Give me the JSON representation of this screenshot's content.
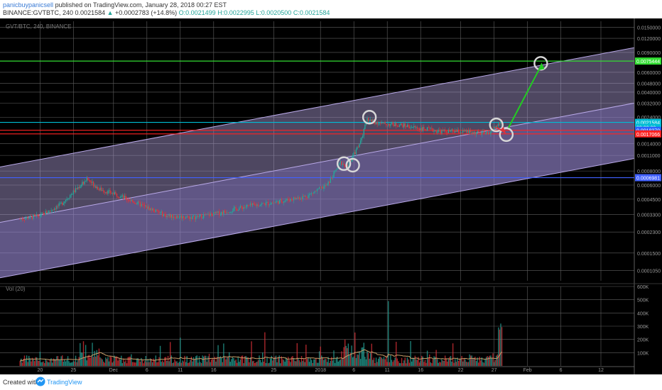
{
  "header": {
    "author": "panicbuypanicsell",
    "published": "published on TradingView.com, January 28, 2018 00:27 EST",
    "symbol": "BINANCE:GVTBTC, 240",
    "last": "0.0021584",
    "change_arrow": "▲",
    "change": "+0.0002783 (+14.8%)",
    "o": "O:0.0021499",
    "h": "H:0.0022995",
    "l": "L:0.0020500",
    "c": "C:0.0021584"
  },
  "footer": {
    "created_with": "Created with",
    "brand": "TradingView",
    "logo_icon": "tradingview-logo-icon"
  },
  "colors": {
    "background": "#000000",
    "grid": "#5f5f5f",
    "channel": "#b9a9e8",
    "channel_band": "#9b8ad6",
    "up": "#26a69a",
    "down": "#e0333a",
    "volume_ma": "#c89f6a",
    "support_red": "#ff2222",
    "resistance_green": "#33dd33",
    "line_blue": "#4060ff",
    "arrow_green": "#22cc22",
    "highlight_circle": "#d8d8d8"
  },
  "chart_data": [
    {
      "type": "candlestick",
      "title": "GVT/BTC, 240, BINANCE",
      "scale": "log",
      "y_axis_labels": [
        "0.0150000",
        "0.0120000",
        "0.0090000",
        "0.0075444",
        "0.0060000",
        "0.0048000",
        "0.0040000",
        "0.0032000",
        "0.0024000",
        "0.0021584",
        "0.0018370",
        "0.0017066",
        "0.0014000",
        "0.0011000",
        "0.0008000",
        "0.0006981",
        "0.0006000",
        "0.0004500",
        "0.0003300",
        "0.0002300",
        "0.0001500",
        "0.0001050"
      ],
      "price_tags": [
        {
          "label": "0.0075444",
          "value": 0.0075444,
          "color": "#33dd33"
        },
        {
          "label": "0.0021584",
          "value": 0.0021584,
          "color": "#00bcd4"
        },
        {
          "label": "02:32:33",
          "value": 0.00195,
          "color": "#00bcd4"
        },
        {
          "label": "0.0018370",
          "value": 0.001837,
          "color": "#2962ff"
        },
        {
          "label": "0.0017066",
          "value": 0.0017066,
          "color": "#ff2222"
        },
        {
          "label": "0.0006981",
          "value": 0.0006981,
          "color": "#4060ff"
        }
      ],
      "x_ticks": [
        "20",
        "25",
        "Dec",
        "6",
        "11",
        "16",
        "25",
        "2018",
        "6",
        "11",
        "16",
        "22",
        "27",
        "Feb",
        "6",
        "12"
      ],
      "horizontal_lines": [
        {
          "name": "resistance",
          "value": 0.0075444,
          "color": "#33dd33"
        },
        {
          "name": "current",
          "value": 0.0021584,
          "color": "#00bcd4"
        },
        {
          "name": "support-upper",
          "value": 0.001837,
          "color": "#ff2222"
        },
        {
          "name": "support-lower",
          "value": 0.0017066,
          "color": "#ff2222"
        },
        {
          "name": "blue-line",
          "value": 0.0006981,
          "color": "#4060ff"
        }
      ],
      "price_path": [
        {
          "t": "2017-11-17",
          "p": 0.0003
        },
        {
          "t": "2017-11-20",
          "p": 0.00032
        },
        {
          "t": "2017-11-23",
          "p": 0.0004
        },
        {
          "t": "2017-11-27",
          "p": 0.00068
        },
        {
          "t": "2017-11-29",
          "p": 0.00055
        },
        {
          "t": "2017-12-02",
          "p": 0.00048
        },
        {
          "t": "2017-12-06",
          "p": 0.00038
        },
        {
          "t": "2017-12-09",
          "p": 0.00032
        },
        {
          "t": "2017-12-13",
          "p": 0.00031
        },
        {
          "t": "2017-12-17",
          "p": 0.00034
        },
        {
          "t": "2017-12-21",
          "p": 0.00039
        },
        {
          "t": "2017-12-25",
          "p": 0.00042
        },
        {
          "t": "2017-12-30",
          "p": 0.00048
        },
        {
          "t": "2018-01-02",
          "p": 0.0006
        },
        {
          "t": "2018-01-04",
          "p": 0.00095
        },
        {
          "t": "2018-01-05",
          "p": 0.00088
        },
        {
          "t": "2018-01-07",
          "p": 0.00145
        },
        {
          "t": "2018-01-08",
          "p": 0.0023
        },
        {
          "t": "2018-01-10",
          "p": 0.0021
        },
        {
          "t": "2018-01-13",
          "p": 0.00205
        },
        {
          "t": "2018-01-16",
          "p": 0.0019
        },
        {
          "t": "2018-01-19",
          "p": 0.0018
        },
        {
          "t": "2018-01-23",
          "p": 0.00178
        },
        {
          "t": "2018-01-26",
          "p": 0.0017
        },
        {
          "t": "2018-01-28",
          "p": 0.00216
        }
      ]
    },
    {
      "type": "bar",
      "title": "Vol (20)",
      "y_axis_labels": [
        "600K",
        "500K",
        "400K",
        "300K",
        "200K",
        "100K"
      ],
      "ylim": [
        0,
        600000
      ]
    }
  ]
}
